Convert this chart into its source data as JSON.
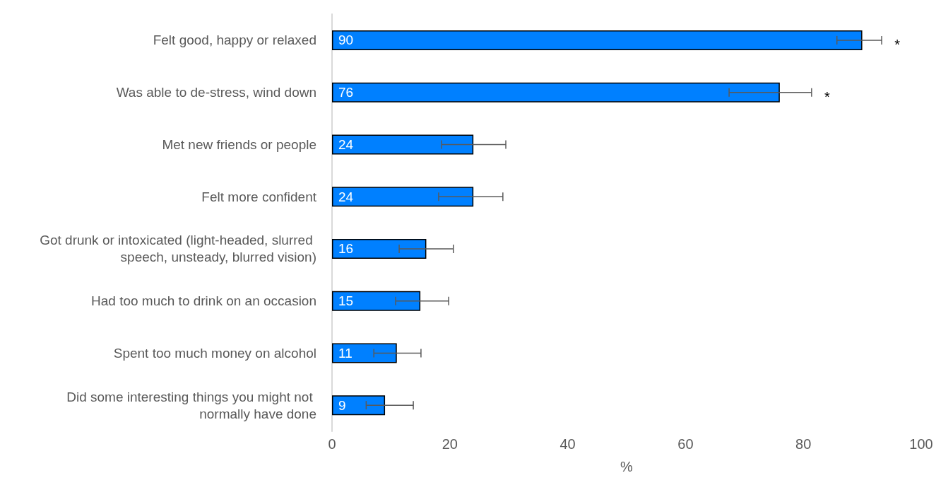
{
  "chart_data": {
    "type": "bar",
    "orientation": "horizontal",
    "xlabel": "%",
    "categories": [
      "Felt good, happy or relaxed",
      "Was able to de-stress, wind down",
      "Met new friends or people",
      "Felt more confident",
      "Got drunk or intoxicated (light-headed, slurred speech, unsteady, blurred vision)",
      "Had too much to drink on an occasion",
      "Spent too much money on alcohol",
      "Did some interesting things you might not normally have done"
    ],
    "values": [
      90,
      76,
      24,
      24,
      16,
      15,
      11,
      9
    ],
    "errors": [
      [
        85.7,
        93.3
      ],
      [
        67.4,
        81.4
      ],
      [
        18.6,
        29.5
      ],
      [
        18.1,
        29.0
      ],
      [
        11.4,
        20.6
      ],
      [
        10.8,
        19.8
      ],
      [
        7.1,
        15.1
      ],
      [
        5.8,
        13.8
      ]
    ],
    "color": "#0080ff",
    "data_labels": true,
    "xlim": [
      0,
      100
    ],
    "xticks": [
      0,
      20,
      40,
      60,
      80,
      100
    ],
    "grid": false,
    "annotations": [
      "*",
      "*"
    ]
  }
}
